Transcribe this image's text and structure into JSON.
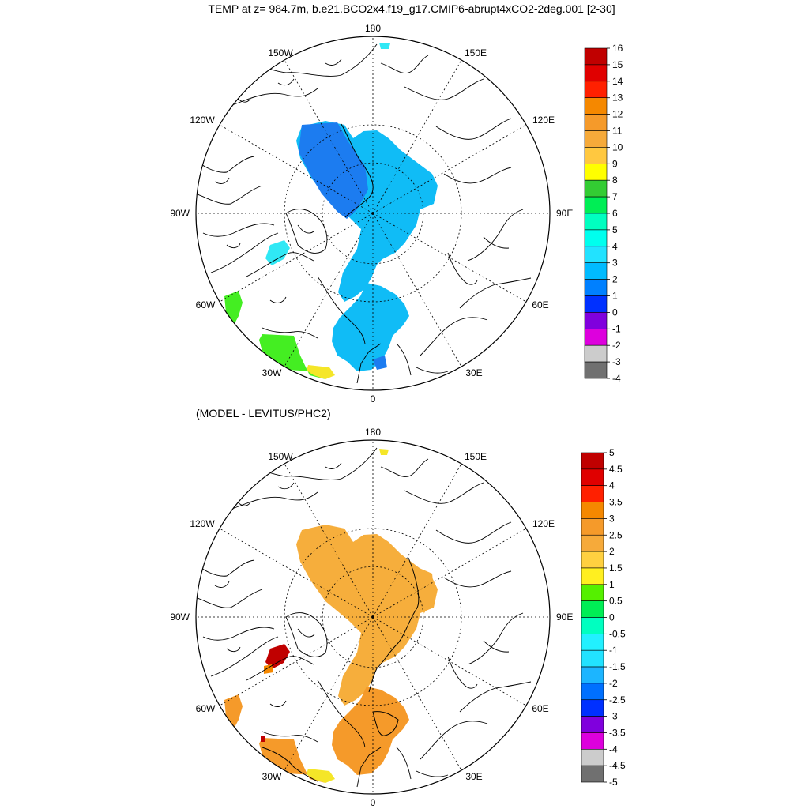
{
  "title": "TEMP at z= 984.7m, b.e21.BCO2x4.f19_g17.CMIP6-abrupt4xCO2-2deg.001 [2-30]",
  "subtitle": "(MODEL - LEVITUS/PHC2)",
  "lon_labels": {
    "top": "180",
    "bottom": "0",
    "left": "90W",
    "right": "90E",
    "upper_left_outer": "150W",
    "upper_right_outer": "150E",
    "upper_left_inner": "120W",
    "upper_right_inner": "120E",
    "lower_left_inner": "60W",
    "lower_right_inner": "60E",
    "lower_left_outer": "30W",
    "lower_right_outer": "30E"
  },
  "map1": {
    "name": "model-temperature-map",
    "colorbar": {
      "labels": [
        "16",
        "15",
        "14",
        "13",
        "12",
        "11",
        "10",
        "9",
        "8",
        "7",
        "6",
        "5",
        "4",
        "3",
        "2",
        "1",
        "0",
        "-1",
        "-2",
        "-3",
        "-4"
      ],
      "colors": [
        "#c00000",
        "#e00000",
        "#ff2000",
        "#f58800",
        "#f59a2a",
        "#f6aa3a",
        "#ffc840",
        "#ffff00",
        "#33cc33",
        "#00ee55",
        "#00ffc0",
        "#00ffee",
        "#22e2ff",
        "#00bbff",
        "#0080ff",
        "#0030ff",
        "#8000dd",
        "#dd00dd",
        "#cccccc",
        "#707070"
      ]
    },
    "fill_colors": {
      "basin": "#10bcf6",
      "eurasian_deep": "#1c7cf0",
      "baffin": "#30e8f5",
      "labrador": "#44ee22",
      "irminger": "#44ee22",
      "iceland_yellow": "#f5e628"
    }
  },
  "map2": {
    "name": "model-minus-levitus-map",
    "colorbar": {
      "labels": [
        "5",
        "4.5",
        "4",
        "3.5",
        "3",
        "2.5",
        "2",
        "1.5",
        "1",
        "0.5",
        "0",
        "-0.5",
        "-1",
        "-1.5",
        "-2",
        "-2.5",
        "-3",
        "-3.5",
        "-4",
        "-4.5",
        "-5"
      ],
      "colors": [
        "#c00000",
        "#e00000",
        "#ff2000",
        "#f58800",
        "#f59a2a",
        "#f6aa3a",
        "#ffd040",
        "#ffef20",
        "#55f000",
        "#00ee55",
        "#00ffc0",
        "#22f0ff",
        "#22e2ff",
        "#1cb5ff",
        "#0070ff",
        "#0030ff",
        "#8000dd",
        "#dd00dd",
        "#cccccc",
        "#707070"
      ]
    },
    "fill_colors": {
      "basin": "#f6ae3c",
      "atlantic": "#f59a2a",
      "baffin": "#c00000",
      "labrador": "#f59a2a",
      "irminger": "#f59a2a",
      "iceland_yellow": "#f5e628"
    }
  }
}
